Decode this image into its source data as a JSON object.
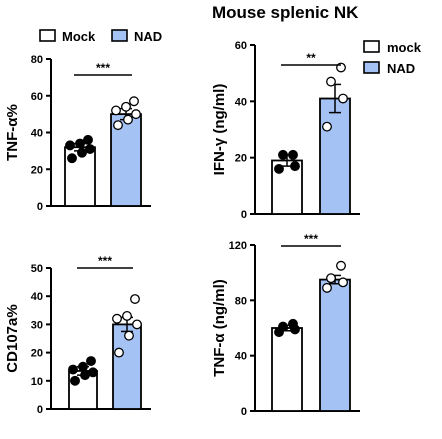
{
  "title": "Mouse splenic NK",
  "legends": [
    {
      "items": [
        {
          "label": "Mock",
          "color": "#ffffff"
        },
        {
          "label": "NAD",
          "color": "#a4c2f4"
        }
      ]
    },
    {
      "items": [
        {
          "label": "mock",
          "color": "#ffffff"
        },
        {
          "label": "NAD",
          "color": "#a4c2f4"
        }
      ]
    }
  ],
  "chart_data": [
    {
      "type": "bar",
      "ylabel": "TNF-α%",
      "ylim": [
        0,
        80
      ],
      "yticks": [
        0,
        20,
        40,
        60,
        80
      ],
      "categories": [
        "Mock",
        "NAD"
      ],
      "colors": [
        "#ffffff",
        "#a4c2f4"
      ],
      "means": [
        32,
        50
      ],
      "errors": [
        2,
        3
      ],
      "points": [
        [
          26,
          29,
          31,
          33,
          34,
          36
        ],
        [
          44,
          47,
          50,
          52,
          54,
          57
        ]
      ],
      "significance": "***"
    },
    {
      "type": "bar",
      "ylabel": "IFN-γ (ng/ml)",
      "ylim": [
        0,
        60
      ],
      "yticks": [
        0,
        20,
        40,
        60
      ],
      "categories": [
        "mock",
        "NAD"
      ],
      "colors": [
        "#ffffff",
        "#a4c2f4"
      ],
      "means": [
        19,
        41
      ],
      "errors": [
        2,
        5
      ],
      "points": [
        [
          16,
          17,
          21,
          21
        ],
        [
          31,
          41,
          47,
          52
        ]
      ],
      "significance": "**"
    },
    {
      "type": "bar",
      "ylabel": "CD107a%",
      "ylim": [
        0,
        50
      ],
      "yticks": [
        0,
        10,
        20,
        30,
        40,
        50
      ],
      "categories": [
        "Mock",
        "NAD"
      ],
      "colors": [
        "#ffffff",
        "#a4c2f4"
      ],
      "means": [
        13.5,
        30
      ],
      "errors": [
        1.5,
        2.5
      ],
      "points": [
        [
          10,
          12,
          13,
          14,
          15,
          17
        ],
        [
          20,
          26,
          30,
          32,
          33,
          39
        ]
      ],
      "significance": "***"
    },
    {
      "type": "bar",
      "ylabel": "TNF-α (ng/ml)",
      "ylim": [
        0,
        120
      ],
      "yticks": [
        0,
        40,
        80,
        120
      ],
      "categories": [
        "mock",
        "NAD"
      ],
      "colors": [
        "#ffffff",
        "#a4c2f4"
      ],
      "means": [
        60,
        95
      ],
      "errors": [
        2,
        3
      ],
      "points": [
        [
          57,
          59,
          61,
          63
        ],
        [
          89,
          93,
          96,
          105
        ]
      ],
      "significance": "***"
    }
  ]
}
